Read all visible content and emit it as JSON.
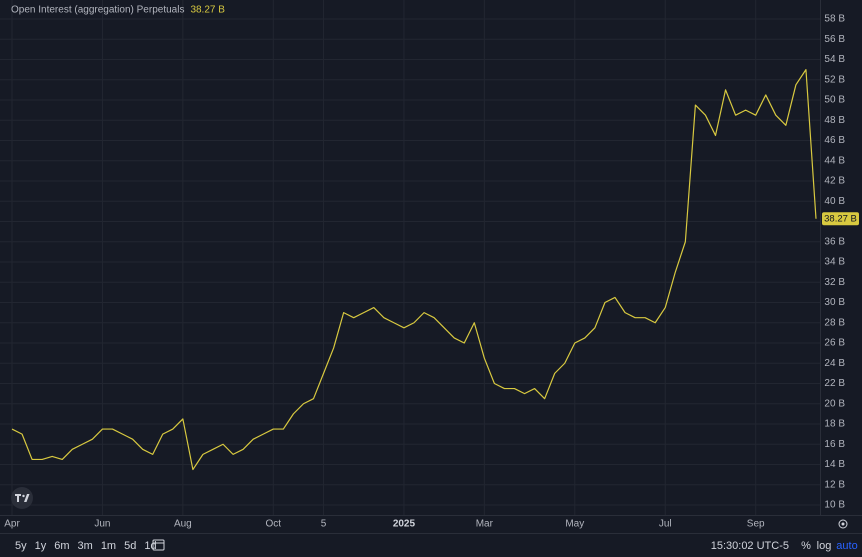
{
  "chart_data": {
    "type": "line",
    "title": "Open Interest (aggregation) Perpetuals",
    "last_value": 38.27,
    "last_value_label": "38.27 B",
    "color": "#d8c940",
    "grid": true,
    "categories": [
      "Apr",
      null,
      null,
      null,
      null,
      null,
      null,
      null,
      null,
      "Jun",
      null,
      null,
      null,
      null,
      null,
      null,
      null,
      "Aug",
      null,
      null,
      null,
      null,
      null,
      null,
      null,
      null,
      "Oct",
      null,
      null,
      null,
      null,
      "5",
      null,
      null,
      null,
      null,
      null,
      null,
      null,
      "2025",
      null,
      null,
      null,
      null,
      null,
      null,
      null,
      "Mar",
      null,
      null,
      null,
      null,
      null,
      null,
      null,
      null,
      "May",
      null,
      null,
      null,
      null,
      null,
      null,
      null,
      null,
      "Jul",
      null,
      null,
      null,
      null,
      null,
      null,
      null,
      null,
      "Sep",
      null,
      null,
      null,
      null,
      null,
      null
    ],
    "values": [
      17.5,
      17,
      14.5,
      14.5,
      14.8,
      14.5,
      15.5,
      16,
      16.5,
      17.5,
      17.5,
      17,
      16.5,
      15.5,
      15,
      17,
      17.5,
      18.5,
      13.5,
      15,
      15.5,
      16,
      15,
      15.5,
      16.5,
      17,
      17.5,
      17.5,
      19,
      20,
      20.5,
      23,
      25.5,
      29,
      28.5,
      29,
      29.5,
      28.5,
      28,
      27.5,
      28,
      29,
      28.5,
      27.5,
      26.5,
      26,
      28,
      24.5,
      22,
      21.5,
      21.5,
      21,
      21.5,
      20.5,
      23,
      24,
      26,
      26.5,
      27.5,
      30,
      30.5,
      29,
      28.5,
      28.5,
      28,
      29.5,
      33,
      36,
      49.5,
      48.5,
      46.5,
      51,
      48.5,
      49,
      48.5,
      50.5,
      48.5,
      47.5,
      51.5,
      53,
      38.27
    ],
    "ylim": [
      9,
      59
    ],
    "yticks": [
      {
        "value": 10,
        "label": "10 B"
      },
      {
        "value": 12,
        "label": "12 B"
      },
      {
        "value": 14,
        "label": "14 B"
      },
      {
        "value": 16,
        "label": "16 B"
      },
      {
        "value": 18,
        "label": "18 B"
      },
      {
        "value": 20,
        "label": "20 B"
      },
      {
        "value": 22,
        "label": "22 B"
      },
      {
        "value": 24,
        "label": "24 B"
      },
      {
        "value": 26,
        "label": "26 B"
      },
      {
        "value": 28,
        "label": "28 B"
      },
      {
        "value": 30,
        "label": "30 B"
      },
      {
        "value": 32,
        "label": "32 B"
      },
      {
        "value": 34,
        "label": "34 B"
      },
      {
        "value": 36,
        "label": "36 B"
      },
      {
        "value": 38,
        "label": "38 B"
      },
      {
        "value": 40,
        "label": "40 B"
      },
      {
        "value": 42,
        "label": "42 B"
      },
      {
        "value": 44,
        "label": "44 B"
      },
      {
        "value": 46,
        "label": "46 B"
      },
      {
        "value": 48,
        "label": "48 B"
      },
      {
        "value": 50,
        "label": "50 B"
      },
      {
        "value": 52,
        "label": "52 B"
      },
      {
        "value": 54,
        "label": "54 B"
      },
      {
        "value": 56,
        "label": "56 B"
      },
      {
        "value": 58,
        "label": "58 B"
      }
    ]
  },
  "toolbar": {
    "ranges": [
      "5y",
      "1y",
      "6m",
      "3m",
      "1m",
      "5d",
      "1d"
    ],
    "time": "15:30:02 UTC-5",
    "options": [
      "%",
      "log",
      "auto"
    ]
  }
}
